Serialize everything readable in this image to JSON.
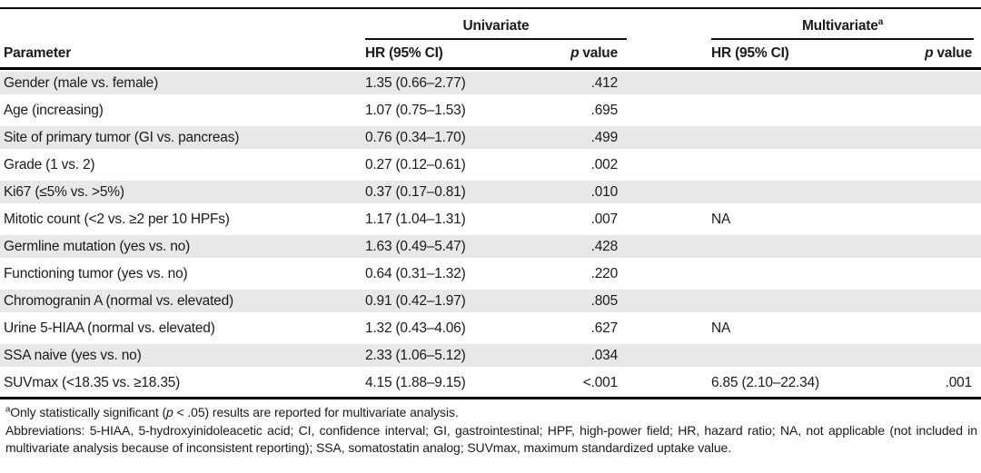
{
  "table": {
    "groups": [
      {
        "label": "Univariate",
        "sup": ""
      },
      {
        "label": "Multivariate",
        "sup": "a"
      }
    ],
    "headers": {
      "parameter": "Parameter",
      "hr_uni": "HR (95% CI)",
      "hr_multi": "HR (95% CI)",
      "p_italic": "p",
      "p_rest": "value"
    },
    "rows": [
      {
        "parameter": "Gender (male vs. female)",
        "uni_hr": "1.35 (0.66–2.77)",
        "uni_p": ".412",
        "multi_hr": "",
        "multi_p": ""
      },
      {
        "parameter": "Age (increasing)",
        "uni_hr": "1.07 (0.75–1.53)",
        "uni_p": ".695",
        "multi_hr": "",
        "multi_p": ""
      },
      {
        "parameter": "Site of primary tumor (GI vs. pancreas)",
        "uni_hr": "0.76 (0.34–1.70)",
        "uni_p": ".499",
        "multi_hr": "",
        "multi_p": ""
      },
      {
        "parameter": "Grade (1 vs. 2)",
        "uni_hr": "0.27 (0.12–0.61)",
        "uni_p": ".002",
        "multi_hr": "",
        "multi_p": ""
      },
      {
        "parameter": "Ki67 (≤5% vs. >5%)",
        "uni_hr": "0.37 (0.17–0.81)",
        "uni_p": ".010",
        "multi_hr": "",
        "multi_p": ""
      },
      {
        "parameter": "Mitotic count (<2 vs. ≥2 per 10 HPFs)",
        "uni_hr": "1.17 (1.04–1.31)",
        "uni_p": ".007",
        "multi_hr": "NA",
        "multi_p": ""
      },
      {
        "parameter": "Germline mutation (yes vs. no)",
        "uni_hr": "1.63 (0.49–5.47)",
        "uni_p": ".428",
        "multi_hr": "",
        "multi_p": ""
      },
      {
        "parameter": "Functioning tumor (yes vs. no)",
        "uni_hr": "0.64 (0.31–1.32)",
        "uni_p": ".220",
        "multi_hr": "",
        "multi_p": ""
      },
      {
        "parameter": "Chromogranin A (normal vs. elevated)",
        "uni_hr": "0.91 (0.42–1.97)",
        "uni_p": ".805",
        "multi_hr": "",
        "multi_p": ""
      },
      {
        "parameter": "Urine 5-HIAA (normal vs. elevated)",
        "uni_hr": "1.32 (0.43–4.06)",
        "uni_p": ".627",
        "multi_hr": "NA",
        "multi_p": ""
      },
      {
        "parameter": "SSA naive (yes vs. no)",
        "uni_hr": "2.33 (1.06–5.12)",
        "uni_p": ".034",
        "multi_hr": "",
        "multi_p": ""
      },
      {
        "parameter": "SUVmax (<18.35 vs. ≥18.35)",
        "uni_hr": "4.15 (1.88–9.15)",
        "uni_p": "<.001",
        "multi_hr": "6.85 (2.10–22.34)",
        "multi_p": ".001"
      }
    ]
  },
  "footnotes": {
    "sig_sup": "a",
    "sig_pre": "Only statistically significant (",
    "sig_p": "p",
    "sig_post": " < .05) results are reported for multivariate analysis.",
    "abbreviations": "Abbreviations: 5-HIAA, 5-hydroxyinidoleacetic acid; CI, confidence interval; GI, gastrointestinal; HPF, high-power field; HR, hazard ratio; NA, not applicable (not included in multivariate analysis because of inconsistent reporting); SSA, somatostatin analog; SUVmax, maximum standardized uptake value."
  },
  "colors": {
    "row_shade": "#e8e8e8",
    "rule": "#000000",
    "text": "#1b1b1b"
  }
}
